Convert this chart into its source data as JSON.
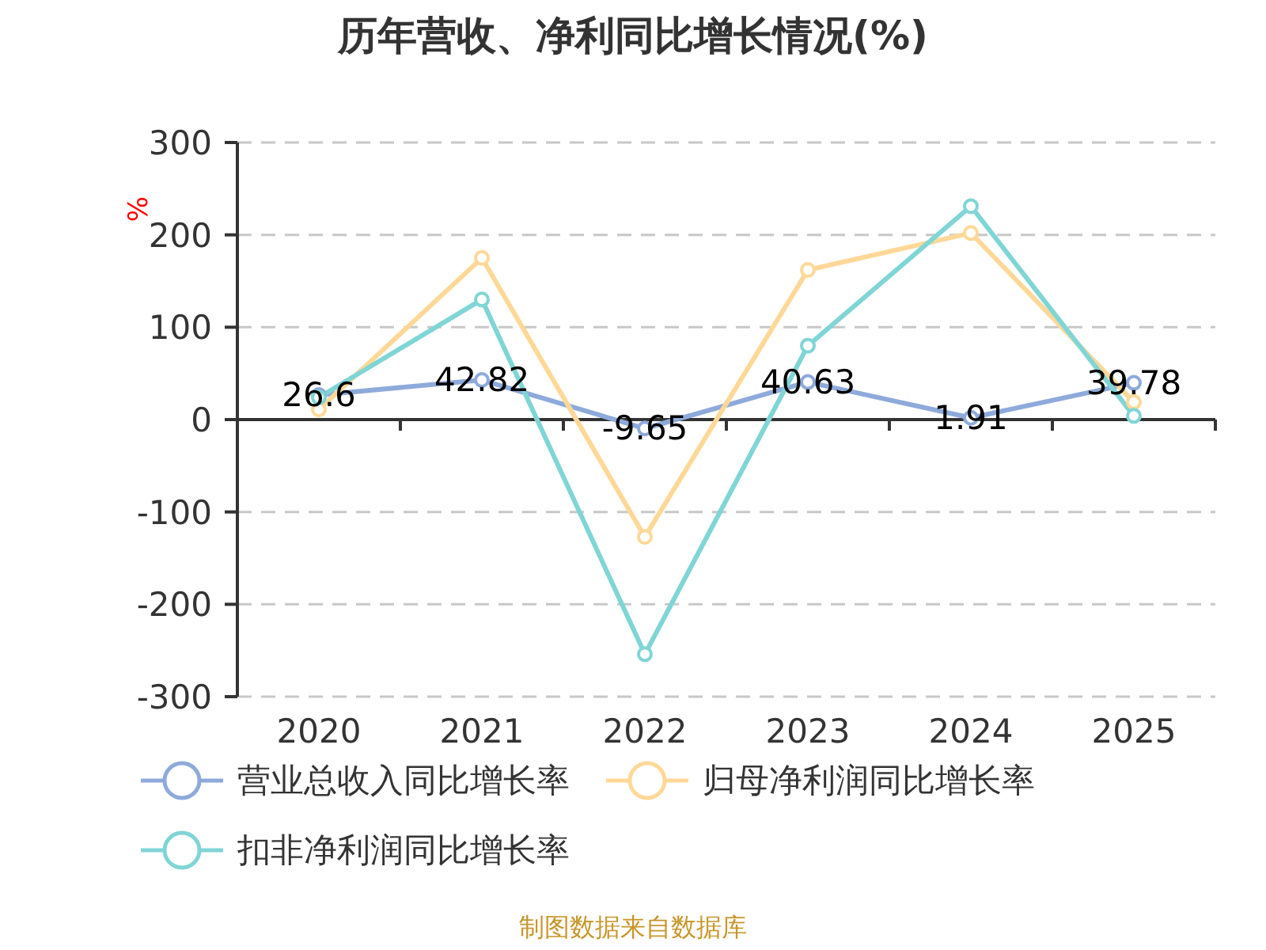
{
  "chart_data": {
    "type": "line",
    "title": "历年营收、净利同比增长情况(%)",
    "ylabel": "%",
    "categories": [
      "2020",
      "2021",
      "2022",
      "2023",
      "2024",
      "2025"
    ],
    "series": [
      {
        "name": "营业总收入同比增长率",
        "color": "#8eaadb",
        "values": [
          26.6,
          42.82,
          -9.65,
          40.63,
          1.91,
          39.78
        ],
        "value_labels": [
          "26.6",
          "42.82",
          "-9.65",
          "40.63",
          "1.91",
          "39.78"
        ]
      },
      {
        "name": "归母净利润同比增长率",
        "color": "#ffd898",
        "values": [
          11,
          175,
          -127,
          162,
          202,
          19
        ]
      },
      {
        "name": "扣非净利润同比增长率",
        "color": "#80d5d5",
        "values": [
          24,
          130,
          -254,
          80,
          231,
          4
        ]
      }
    ],
    "ylim": [
      -300,
      300
    ],
    "yticks": [
      -300,
      -200,
      -100,
      0,
      100,
      200,
      300
    ],
    "grid": "y",
    "legend": "bottom",
    "marker": "circle",
    "annotations": [
      "制图数据来自数据库"
    ]
  }
}
